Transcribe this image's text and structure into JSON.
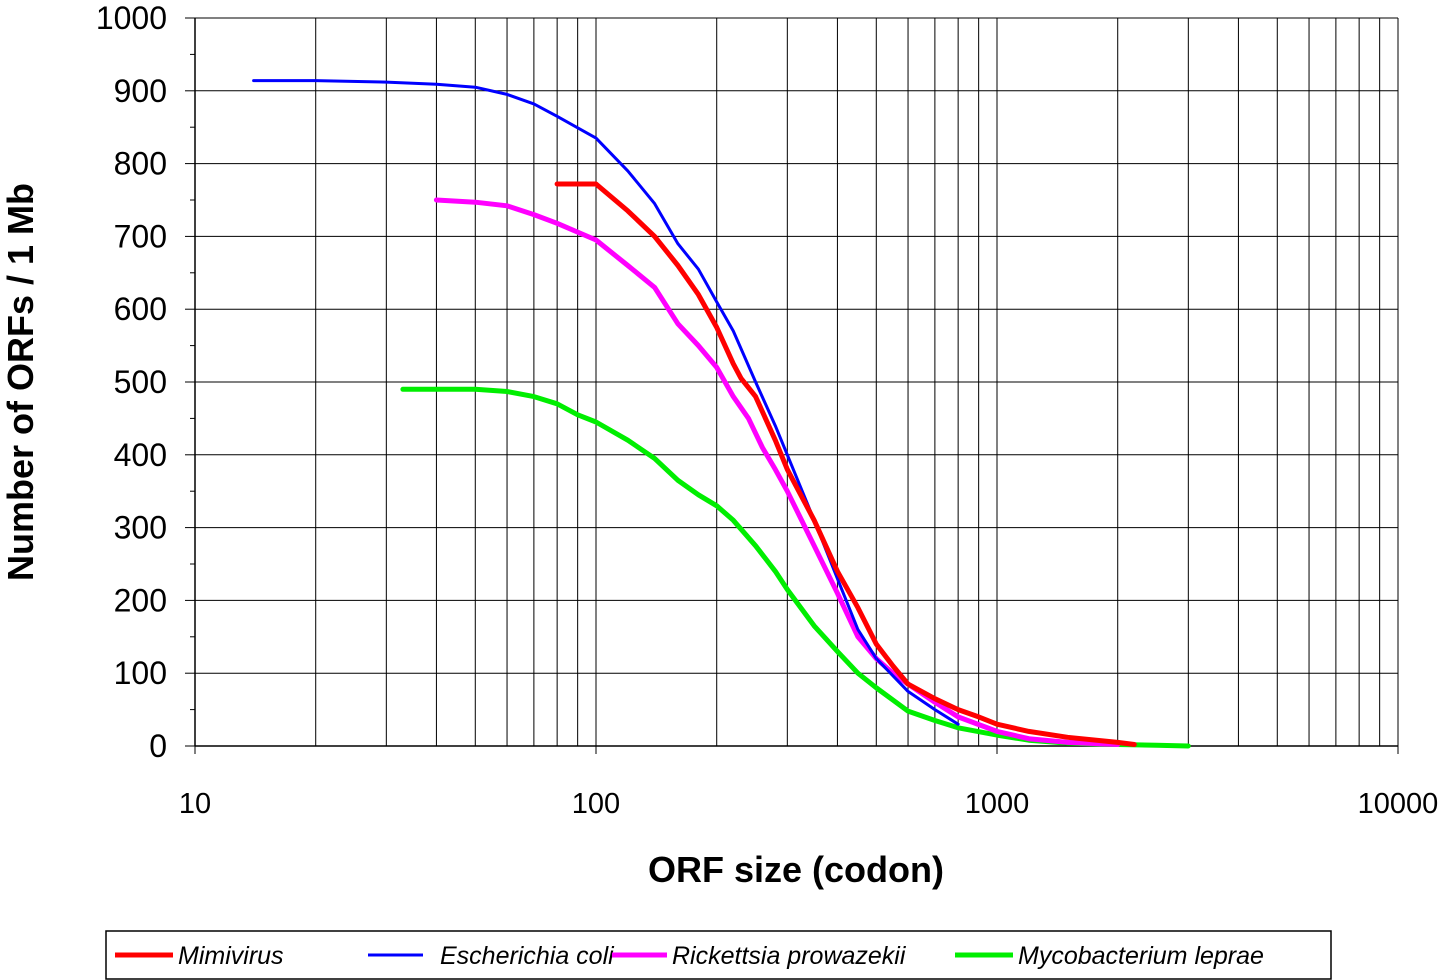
{
  "chart_data": {
    "type": "line",
    "xlabel": "ORF size (codon)",
    "ylabel": "Number of ORFs / 1 Mb",
    "xscale": "log",
    "xlim": [
      10,
      10000
    ],
    "ylim": [
      0,
      1000
    ],
    "xticks": [
      "10",
      "100",
      "1000",
      "10000"
    ],
    "yticks": [
      "0",
      "100",
      "200",
      "300",
      "400",
      "500",
      "600",
      "700",
      "800",
      "900",
      "1000"
    ],
    "grid": "vertical log gridlines, horizontal at each 100",
    "legend": "bottom",
    "series": [
      {
        "name": "Mimivirus",
        "color": "#ff0000",
        "x": [
          80,
          100,
          120,
          140,
          160,
          180,
          200,
          220,
          230,
          250,
          280,
          300,
          350,
          400,
          450,
          500,
          550,
          600,
          700,
          800,
          900,
          1000,
          1200,
          1500,
          2000,
          2200
        ],
        "y": [
          772,
          772,
          735,
          700,
          660,
          620,
          575,
          525,
          505,
          480,
          420,
          380,
          310,
          240,
          190,
          140,
          110,
          85,
          65,
          50,
          40,
          30,
          20,
          12,
          5,
          2
        ]
      },
      {
        "name": "Escherichia coli",
        "color": "#0000ff",
        "x": [
          14,
          20,
          30,
          40,
          50,
          60,
          70,
          80,
          100,
          120,
          140,
          160,
          180,
          200,
          220,
          250,
          280,
          300,
          350,
          400,
          450,
          500,
          600,
          700,
          800
        ],
        "y": [
          914,
          914,
          912,
          909,
          905,
          895,
          882,
          865,
          835,
          790,
          745,
          690,
          655,
          610,
          570,
          500,
          440,
          400,
          310,
          230,
          160,
          120,
          75,
          50,
          30
        ]
      },
      {
        "name": "Rickettsia prowazekii",
        "color": "#ff00ff",
        "x": [
          40,
          50,
          60,
          70,
          80,
          100,
          120,
          140,
          160,
          180,
          200,
          220,
          240,
          260,
          280,
          300,
          350,
          400,
          450,
          500,
          550,
          600,
          700,
          800,
          1000,
          1200,
          1500,
          2000
        ],
        "y": [
          750,
          747,
          742,
          730,
          718,
          695,
          660,
          630,
          580,
          550,
          520,
          480,
          450,
          410,
          380,
          350,
          275,
          210,
          150,
          120,
          100,
          85,
          60,
          40,
          20,
          10,
          5,
          2
        ]
      },
      {
        "name": "Mycobacterium leprae",
        "color": "#00ee00",
        "x": [
          33,
          40,
          50,
          60,
          70,
          80,
          90,
          100,
          120,
          140,
          160,
          180,
          200,
          220,
          250,
          280,
          300,
          350,
          400,
          450,
          500,
          600,
          700,
          800,
          1000,
          1200,
          1500,
          2000,
          2500,
          3000
        ],
        "y": [
          490,
          490,
          490,
          487,
          480,
          470,
          455,
          445,
          420,
          395,
          365,
          345,
          330,
          310,
          275,
          240,
          215,
          165,
          130,
          100,
          80,
          48,
          35,
          25,
          15,
          8,
          4,
          2,
          1,
          0
        ]
      }
    ]
  }
}
